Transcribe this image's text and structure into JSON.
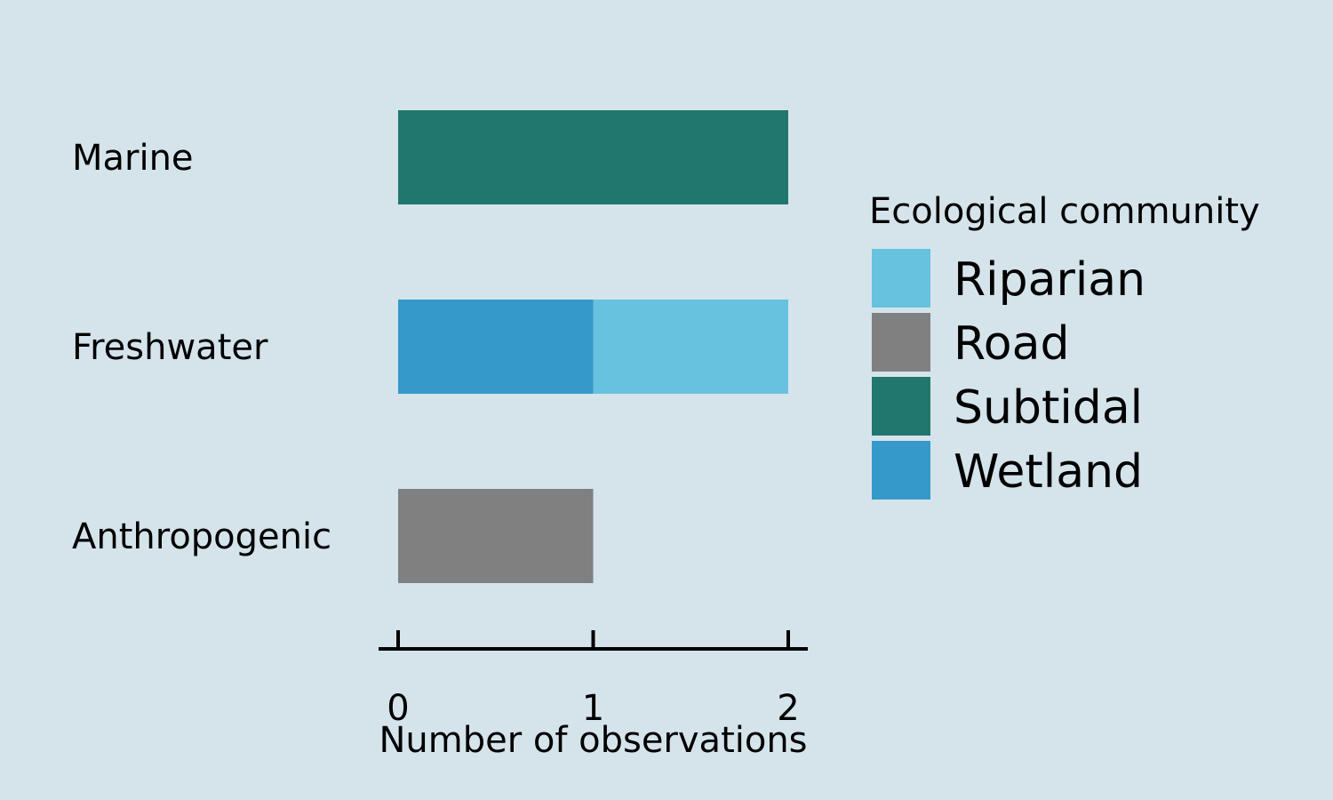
{
  "chart_data": {
    "type": "bar",
    "orientation": "horizontal",
    "stacked": true,
    "categories": [
      "Marine",
      "Freshwater",
      "Anthropogenic"
    ],
    "series": [
      {
        "name": "Riparian",
        "color": "#66c2de",
        "values": [
          0,
          1,
          0
        ]
      },
      {
        "name": "Road",
        "color": "#808080",
        "values": [
          0,
          0,
          1
        ]
      },
      {
        "name": "Subtidal",
        "color": "#21776e",
        "values": [
          2,
          0,
          0
        ]
      },
      {
        "name": "Wetland",
        "color": "#3599c9",
        "values": [
          0,
          1,
          0
        ]
      }
    ],
    "stack_order": [
      "Wetland",
      "Riparian",
      "Road",
      "Subtidal"
    ],
    "xlabel": "Number of observations",
    "xlim": [
      0,
      2
    ],
    "xticks": [
      0,
      1,
      2
    ],
    "legend": {
      "title": "Ecological community",
      "position": "right"
    },
    "grid": false,
    "background": "#d5e4eb"
  }
}
